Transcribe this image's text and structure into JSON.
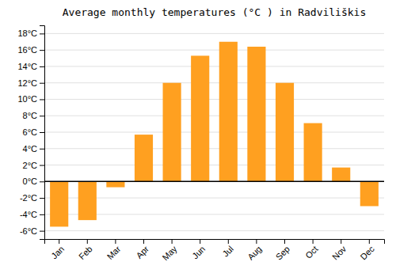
{
  "chart_data": {
    "type": "bar",
    "title": "Average monthly temperatures (°C ) in Radviliškis",
    "categories": [
      "Jan",
      "Feb",
      "Mar",
      "Apr",
      "May",
      "Jun",
      "Jul",
      "Aug",
      "Sep",
      "Oct",
      "Nov",
      "Dec"
    ],
    "values": [
      -5.5,
      -4.7,
      -0.7,
      5.7,
      12.0,
      15.3,
      17.0,
      16.4,
      12.0,
      7.1,
      1.7,
      -3.0
    ],
    "color": "#FFA020",
    "ylim": [
      -7,
      19
    ],
    "yticks": [
      {
        "value": -6,
        "label": "-6°C"
      },
      {
        "value": -4,
        "label": "-4°C"
      },
      {
        "value": -2,
        "label": "-2°C"
      },
      {
        "value": 0,
        "label": "0°C"
      },
      {
        "value": 2,
        "label": "2°C"
      },
      {
        "value": 4,
        "label": "4°C"
      },
      {
        "value": 6,
        "label": "6°C"
      },
      {
        "value": 8,
        "label": "8°C"
      },
      {
        "value": 10,
        "label": "10°C"
      },
      {
        "value": 12,
        "label": "12°C"
      },
      {
        "value": 14,
        "label": "14°C"
      },
      {
        "value": 16,
        "label": "16°C"
      },
      {
        "value": 18,
        "label": "18°C"
      }
    ],
    "grid": true
  }
}
